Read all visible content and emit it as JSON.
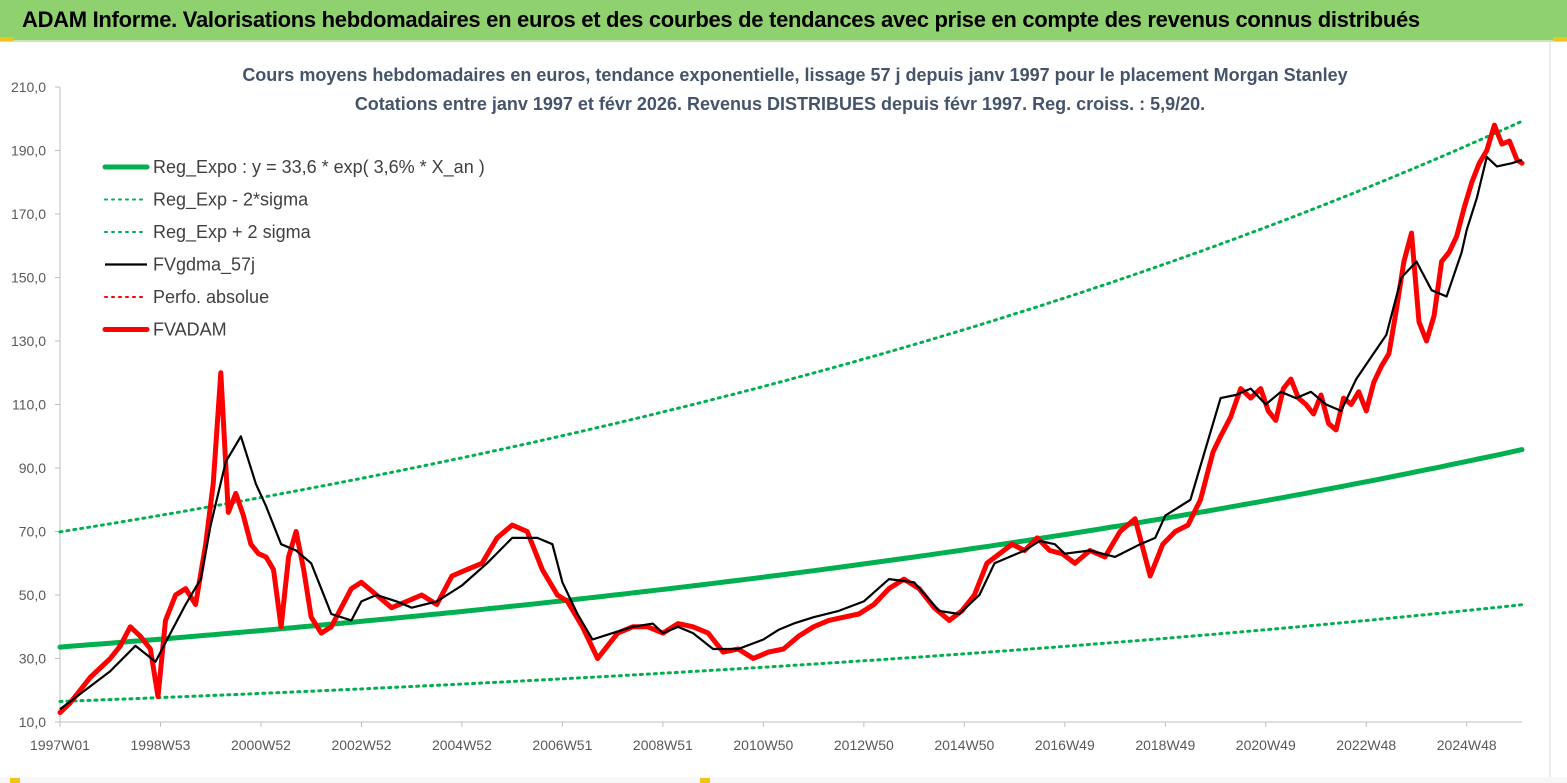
{
  "header": {
    "title": "ADAM Informe. Valorisations hebdomadaires en euros et des courbes de tendances avec prise en compte des revenus connus distribués"
  },
  "colors": {
    "header_bg": "#8fd16f",
    "reg_expo": "#00b050",
    "fvgdma": "#000000",
    "fvadam": "#ff0000",
    "perfo": "#ff0000",
    "axis_text": "#595959",
    "title_text": "#44546a"
  },
  "chart_data": {
    "type": "line",
    "title_line1": "Cours moyens hebdomadaires en euros, tendance exponentielle, lissage 57 j depuis janv 1997 pour le placement Morgan Stanley",
    "title_line2": "Cotations entre janv 1997 et févr 2026. Revenus DISTRIBUES depuis févr 1997. Reg. croiss. : 5,9/20.",
    "ylim": [
      10,
      210
    ],
    "y_ticks": [
      "10,0",
      "30,0",
      "50,0",
      "70,0",
      "90,0",
      "110,0",
      "130,0",
      "150,0",
      "170,0",
      "190,0",
      "210,0"
    ],
    "x_range": [
      1997.0,
      2026.1
    ],
    "x_ticks": [
      {
        "label": "1997W01",
        "x": 1997.0
      },
      {
        "label": "1998W53",
        "x": 1999.0
      },
      {
        "label": "2000W52",
        "x": 2001.0
      },
      {
        "label": "2002W52",
        "x": 2003.0
      },
      {
        "label": "2004W52",
        "x": 2005.0
      },
      {
        "label": "2006W51",
        "x": 2007.0
      },
      {
        "label": "2008W51",
        "x": 2009.0
      },
      {
        "label": "2010W50",
        "x": 2011.0
      },
      {
        "label": "2012W50",
        "x": 2013.0
      },
      {
        "label": "2014W50",
        "x": 2015.0
      },
      {
        "label": "2016W49",
        "x": 2017.0
      },
      {
        "label": "2018W49",
        "x": 2019.0
      },
      {
        "label": "2020W49",
        "x": 2021.0
      },
      {
        "label": "2022W48",
        "x": 2023.0
      },
      {
        "label": "2024W48",
        "x": 2025.0
      }
    ],
    "legend_position": "top-left",
    "grid": false,
    "series": [
      {
        "name": "Reg_Expo : y = 33,6 * exp( 3,6% *  X_an )",
        "style": "thick-solid",
        "color": "#00b050",
        "formula": {
          "a": 33.6,
          "rate": 0.036,
          "factor": 1.0
        }
      },
      {
        "name": "Reg_Exp - 2*sigma",
        "style": "dotted",
        "color": "#00b050",
        "formula": {
          "a": 33.6,
          "rate": 0.036,
          "factor": 0.49
        }
      },
      {
        "name": "Reg_Exp + 2 sigma",
        "style": "dotted",
        "color": "#00b050",
        "formula": {
          "a": 33.6,
          "rate": 0.036,
          "factor": 2.08
        }
      },
      {
        "name": "FVgdma_57j",
        "style": "solid",
        "color": "#000000",
        "x": [
          1997.0,
          1997.5,
          1998.0,
          1998.5,
          1998.9,
          1999.2,
          1999.5,
          1999.8,
          2000.0,
          2000.3,
          2000.6,
          2000.9,
          2001.1,
          2001.4,
          2001.7,
          2002.0,
          2002.4,
          2002.8,
          2003.0,
          2003.3,
          2003.7,
          2004.0,
          2004.5,
          2005.0,
          2005.5,
          2006.0,
          2006.5,
          2006.8,
          2007.0,
          2007.3,
          2007.6,
          2008.0,
          2008.4,
          2008.8,
          2009.0,
          2009.3,
          2009.6,
          2010.0,
          2010.5,
          2011.0,
          2011.3,
          2011.6,
          2012.0,
          2012.5,
          2013.0,
          2013.5,
          2014.0,
          2014.5,
          2014.9,
          2015.3,
          2015.6,
          2015.9,
          2016.2,
          2016.5,
          2016.8,
          2017.0,
          2017.5,
          2018.0,
          2018.5,
          2018.8,
          2019.0,
          2019.5,
          2019.8,
          2020.1,
          2020.4,
          2020.7,
          2021.0,
          2021.3,
          2021.6,
          2021.9,
          2022.2,
          2022.5,
          2022.8,
          2023.1,
          2023.4,
          2023.7,
          2024.0,
          2024.3,
          2024.6,
          2024.9,
          2025.0,
          2025.2,
          2025.4,
          2025.6,
          2025.9,
          2026.1
        ],
        "values": [
          14,
          20,
          26,
          34,
          29,
          38,
          47,
          55,
          72,
          92,
          100,
          85,
          78,
          66,
          64,
          60,
          44,
          42,
          48,
          50,
          48,
          46,
          48,
          53,
          60,
          68,
          68,
          66,
          54,
          44,
          36,
          38,
          40,
          41,
          38,
          40,
          38,
          33,
          33,
          36,
          39,
          41,
          43,
          45,
          48,
          55,
          54,
          45,
          44,
          50,
          60,
          62,
          64,
          67,
          66,
          63,
          64,
          62,
          66,
          68,
          75,
          80,
          96,
          112,
          113,
          115,
          110,
          114,
          112,
          114,
          110,
          108,
          118,
          125,
          132,
          150,
          155,
          146,
          144,
          158,
          165,
          175,
          188,
          185,
          186,
          187
        ]
      },
      {
        "name": "Perfo. absolue",
        "style": "dotted",
        "color": "#ff0000"
      },
      {
        "name": "FVADAM",
        "style": "thick-solid",
        "color": "#ff0000",
        "x": [
          1997.0,
          1997.2,
          1997.4,
          1997.6,
          1997.8,
          1998.0,
          1998.2,
          1998.4,
          1998.6,
          1998.8,
          1998.95,
          1999.1,
          1999.3,
          1999.5,
          1999.7,
          1999.9,
          2000.05,
          2000.2,
          2000.35,
          2000.5,
          2000.65,
          2000.8,
          2000.95,
          2001.1,
          2001.25,
          2001.4,
          2001.55,
          2001.7,
          2001.85,
          2002.0,
          2002.2,
          2002.4,
          2002.6,
          2002.8,
          2003.0,
          2003.3,
          2003.6,
          2003.9,
          2004.2,
          2004.5,
          2004.8,
          2005.1,
          2005.4,
          2005.7,
          2006.0,
          2006.3,
          2006.6,
          2006.9,
          2007.1,
          2007.4,
          2007.7,
          2007.9,
          2008.1,
          2008.4,
          2008.7,
          2009.0,
          2009.3,
          2009.6,
          2009.9,
          2010.2,
          2010.5,
          2010.8,
          2011.1,
          2011.4,
          2011.7,
          2012.0,
          2012.3,
          2012.6,
          2012.9,
          2013.2,
          2013.5,
          2013.8,
          2014.1,
          2014.4,
          2014.7,
          2014.95,
          2015.2,
          2015.45,
          2015.7,
          2015.95,
          2016.2,
          2016.45,
          2016.7,
          2016.95,
          2017.2,
          2017.5,
          2017.8,
          2018.1,
          2018.4,
          2018.7,
          2018.95,
          2019.2,
          2019.45,
          2019.7,
          2019.95,
          2020.1,
          2020.3,
          2020.5,
          2020.7,
          2020.9,
          2021.05,
          2021.2,
          2021.35,
          2021.5,
          2021.65,
          2021.8,
          2021.95,
          2022.1,
          2022.25,
          2022.4,
          2022.55,
          2022.7,
          2022.85,
          2023.0,
          2023.15,
          2023.3,
          2023.45,
          2023.6,
          2023.75,
          2023.9,
          2024.05,
          2024.2,
          2024.35,
          2024.5,
          2024.65,
          2024.8,
          2024.95,
          2025.1,
          2025.25,
          2025.4,
          2025.55,
          2025.7,
          2025.85,
          2026.0,
          2026.1
        ],
        "values": [
          13,
          16,
          20,
          24,
          27,
          30,
          34,
          40,
          37,
          33,
          18,
          42,
          50,
          52,
          47,
          66,
          85,
          120,
          76,
          82,
          75,
          66,
          63,
          62,
          58,
          40,
          62,
          70,
          58,
          43,
          38,
          40,
          46,
          52,
          54,
          50,
          46,
          48,
          50,
          47,
          56,
          58,
          60,
          68,
          72,
          70,
          58,
          50,
          48,
          40,
          30,
          34,
          38,
          40,
          40,
          38,
          41,
          40,
          38,
          32,
          33,
          30,
          32,
          33,
          37,
          40,
          42,
          43,
          44,
          47,
          52,
          55,
          52,
          46,
          42,
          45,
          50,
          60,
          63,
          66,
          64,
          68,
          64,
          63,
          60,
          64,
          62,
          70,
          74,
          56,
          66,
          70,
          72,
          80,
          95,
          100,
          106,
          115,
          112,
          115,
          108,
          105,
          115,
          118,
          112,
          110,
          107,
          113,
          104,
          102,
          112,
          110,
          114,
          108,
          117,
          122,
          126,
          140,
          155,
          164,
          136,
          130,
          138,
          155,
          158,
          163,
          172,
          180,
          186,
          190,
          198,
          192,
          193,
          187,
          186
        ]
      }
    ]
  }
}
